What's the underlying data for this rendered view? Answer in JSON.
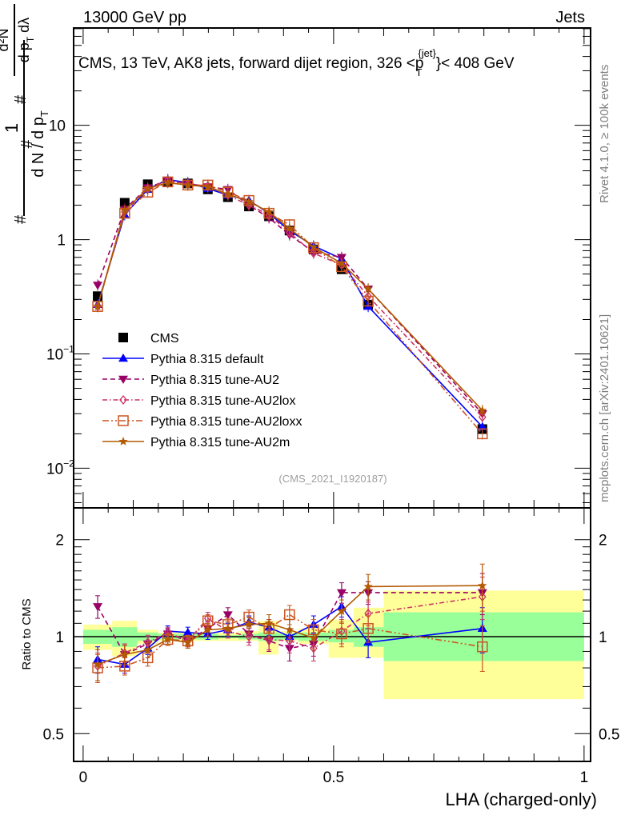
{
  "header": {
    "left_label": "13000 GeV pp",
    "right_label": "Jets"
  },
  "side_labels": {
    "rivet": "Rivet 4.1.0, ≥ 100k events",
    "mcplots": "mcplots.cern.ch [arXiv:2401.10621]"
  },
  "analysis_tag": "(CMS_2021_I1920187)",
  "chart_data": [
    {
      "type": "line",
      "panel": "main",
      "title": "CMS, 13 TeV, AK8 jets, forward dijet region, 326 <p_T^{jet}< 408 GeV",
      "title_parts": {
        "prefix": "CMS, 13 TeV, AK8 jets, forward dijet region, 326 <p",
        "sub": "T",
        "sup": "{jet}",
        "suffix": "}< 408 GeV"
      },
      "xlabel": "LHA (charged-only)",
      "ylabel": "1/N dN/dp_T dλ (# d²N / # dp_T dλ)",
      "yscale": "log",
      "xlim": [
        -0.019,
        1.013
      ],
      "ylim": [
        0.0045,
        71
      ],
      "yticks": [
        {
          "value": 0.01,
          "label": "10",
          "exp": "−2"
        },
        {
          "value": 0.1,
          "label": "10",
          "exp": "−1"
        },
        {
          "value": 1,
          "label": "1",
          "exp": ""
        },
        {
          "value": 10,
          "label": "10",
          "exp": ""
        }
      ],
      "legend_position": "center-left",
      "x": [
        0.029,
        0.083,
        0.129,
        0.169,
        0.209,
        0.249,
        0.289,
        0.331,
        0.371,
        0.412,
        0.46,
        0.516,
        0.569,
        0.797
      ],
      "series": [
        {
          "name": "CMS",
          "color": "#000000",
          "marker": "square",
          "dash": "none",
          "values": [
            0.32,
            2.1,
            3.05,
            3.2,
            3.1,
            2.75,
            2.35,
            1.95,
            1.6,
            1.2,
            0.82,
            0.55,
            0.27,
            0.022
          ]
        },
        {
          "name": "Pythia 8.315 default",
          "color": "#0000ff",
          "marker": "triangle-up",
          "dash": "solid",
          "values": [
            0.27,
            1.65,
            2.75,
            3.35,
            3.15,
            2.8,
            2.45,
            2.2,
            1.7,
            1.2,
            0.88,
            0.68,
            0.26,
            0.023
          ]
        },
        {
          "name": "Pythia 8.315 tune-AU2",
          "color": "#990066",
          "marker": "triangle-down",
          "dash": "dashed",
          "values": [
            0.4,
            1.85,
            2.85,
            3.3,
            3.1,
            2.9,
            2.75,
            2.0,
            1.55,
            1.1,
            0.78,
            0.7,
            0.37,
            0.03
          ]
        },
        {
          "name": "Pythia 8.315 tune-AU2lox",
          "color": "#cc3366",
          "marker": "diamond-open",
          "dash": "dashdot",
          "values": [
            0.26,
            1.75,
            2.8,
            3.3,
            3.05,
            2.95,
            2.45,
            2.0,
            1.65,
            1.15,
            0.76,
            0.6,
            0.32,
            0.028
          ]
        },
        {
          "name": "Pythia 8.315 tune-AU2loxx",
          "color": "#cc5522",
          "marker": "square-open",
          "dash": "dashdotdot",
          "values": [
            0.26,
            1.7,
            2.6,
            3.2,
            3.0,
            3.0,
            2.6,
            2.2,
            1.7,
            1.35,
            0.85,
            0.58,
            0.29,
            0.02
          ]
        },
        {
          "name": "Pythia 8.315 tune-AU2m",
          "color": "#b35900",
          "marker": "star",
          "dash": "solid",
          "values": [
            0.26,
            1.8,
            2.8,
            3.15,
            3.0,
            2.9,
            2.5,
            2.15,
            1.75,
            1.25,
            0.86,
            0.62,
            0.37,
            0.032
          ]
        }
      ]
    },
    {
      "type": "line",
      "panel": "ratio",
      "ylabel": "Ratio to CMS",
      "xlabel": "LHA (charged-only)",
      "yscale": "log",
      "xlim": [
        -0.019,
        1.013
      ],
      "ylim": [
        0.41,
        2.51
      ],
      "yticks": [
        0.5,
        1,
        2
      ],
      "ytick_labels": [
        "0.5",
        "1",
        "2"
      ],
      "xticks": [
        0,
        0.5,
        1
      ],
      "xtick_labels": [
        "0",
        "0.5",
        "1"
      ],
      "reference_line": 1,
      "bands": {
        "bin_edges": [
          0.0,
          0.058,
          0.108,
          0.15,
          0.19,
          0.23,
          0.27,
          0.31,
          0.35,
          0.39,
          0.43,
          0.49,
          0.54,
          0.6,
          1.0
        ],
        "stat_lo": [
          0.95,
          0.93,
          0.97,
          0.98,
          0.98,
          0.98,
          0.99,
          0.98,
          0.97,
          0.98,
          0.97,
          0.96,
          0.93,
          0.84
        ],
        "stat_hi": [
          1.05,
          1.07,
          1.03,
          1.02,
          1.02,
          1.02,
          1.01,
          1.02,
          1.03,
          1.02,
          1.03,
          1.05,
          1.07,
          1.19
        ],
        "total_lo": [
          0.91,
          0.87,
          0.95,
          0.97,
          0.97,
          0.97,
          0.97,
          0.97,
          0.88,
          0.97,
          0.95,
          0.86,
          0.86,
          0.64
        ],
        "total_hi": [
          1.09,
          1.12,
          1.05,
          1.03,
          1.03,
          1.03,
          1.03,
          1.04,
          1.12,
          1.04,
          1.06,
          1.13,
          1.23,
          1.39
        ],
        "stat_color": "#99ff99",
        "total_color": "#ffff99"
      },
      "x": [
        0.029,
        0.083,
        0.129,
        0.169,
        0.209,
        0.249,
        0.289,
        0.331,
        0.371,
        0.412,
        0.46,
        0.516,
        0.569,
        0.797
      ],
      "series": [
        {
          "name": "Pythia 8.315 default",
          "color": "#0000ff",
          "marker": "triangle-up",
          "dash": "solid",
          "values": [
            0.85,
            0.82,
            0.92,
            1.04,
            1.03,
            1.02,
            1.05,
            1.11,
            1.07,
            1.0,
            1.09,
            1.24,
            0.96,
            1.06
          ],
          "err": [
            0.08,
            0.05,
            0.04,
            0.04,
            0.04,
            0.04,
            0.05,
            0.05,
            0.06,
            0.06,
            0.07,
            0.09,
            0.1,
            0.17
          ]
        },
        {
          "name": "Pythia 8.315 tune-AU2",
          "color": "#990066",
          "marker": "triangle-down",
          "dash": "dashed",
          "values": [
            1.24,
            0.88,
            0.95,
            1.02,
            0.97,
            1.06,
            1.17,
            1.02,
            0.97,
            0.92,
            0.95,
            1.37,
            1.37,
            1.37
          ],
          "err": [
            0.1,
            0.06,
            0.05,
            0.04,
            0.04,
            0.05,
            0.06,
            0.06,
            0.07,
            0.08,
            0.08,
            0.1,
            0.11,
            0.2
          ]
        },
        {
          "name": "Pythia 8.315 tune-AU2lox",
          "color": "#cc3366",
          "marker": "diamond-open",
          "dash": "dashdot",
          "values": [
            0.81,
            0.89,
            0.96,
            1.03,
            0.97,
            1.14,
            1.04,
            1.0,
            0.98,
            0.97,
            0.92,
            1.04,
            1.18,
            1.33
          ],
          "err": [
            0.08,
            0.06,
            0.05,
            0.04,
            0.04,
            0.05,
            0.05,
            0.06,
            0.07,
            0.08,
            0.08,
            0.09,
            0.1,
            0.2
          ]
        },
        {
          "name": "Pythia 8.315 tune-AU2loxx",
          "color": "#cc5522",
          "marker": "square-open",
          "dash": "dashdotdot",
          "values": [
            0.8,
            0.81,
            0.86,
            0.98,
            0.97,
            1.12,
            1.09,
            1.15,
            1.06,
            1.17,
            1.05,
            1.02,
            1.06,
            0.93
          ],
          "err": [
            0.08,
            0.05,
            0.05,
            0.04,
            0.04,
            0.05,
            0.05,
            0.06,
            0.07,
            0.08,
            0.08,
            0.09,
            0.1,
            0.15
          ]
        },
        {
          "name": "Pythia 8.315 tune-AU2m",
          "color": "#b35900",
          "marker": "star",
          "dash": "solid",
          "values": [
            0.82,
            0.88,
            0.91,
            0.98,
            0.96,
            1.05,
            1.06,
            1.09,
            1.1,
            1.05,
            0.99,
            1.2,
            1.43,
            1.44
          ],
          "err": [
            0.09,
            0.06,
            0.05,
            0.04,
            0.04,
            0.05,
            0.05,
            0.06,
            0.07,
            0.08,
            0.08,
            0.1,
            0.13,
            0.24
          ]
        }
      ]
    }
  ]
}
